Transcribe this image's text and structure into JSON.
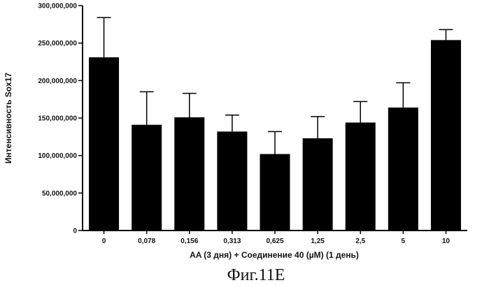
{
  "chart_data": {
    "type": "bar",
    "title": "",
    "xlabel": "AA (3 дня) + Соединение 40 (µM) (1 день)",
    "ylabel": "Интенсивность Sox17",
    "ylim": [
      0,
      300000000
    ],
    "yticks": [
      0,
      50000000,
      100000000,
      150000000,
      200000000,
      250000000,
      300000000
    ],
    "ytick_labels": [
      "0",
      "50,000,000",
      "100,000,000",
      "150,000,000",
      "200,000,000",
      "250,000,000",
      "300,000,000"
    ],
    "categories": [
      "0",
      "0,078",
      "0,156",
      "0,313",
      "0,625",
      "1,25",
      "2,5",
      "5",
      "10"
    ],
    "values": [
      231000000,
      141000000,
      151000000,
      132000000,
      102000000,
      123000000,
      144000000,
      164000000,
      254000000
    ],
    "error_upper": [
      53000000,
      44000000,
      32000000,
      22000000,
      30000000,
      29000000,
      28000000,
      33000000,
      14000000
    ],
    "bar_color": "#000000",
    "grid": false,
    "legend": "none"
  },
  "caption": "Фиг.11E"
}
